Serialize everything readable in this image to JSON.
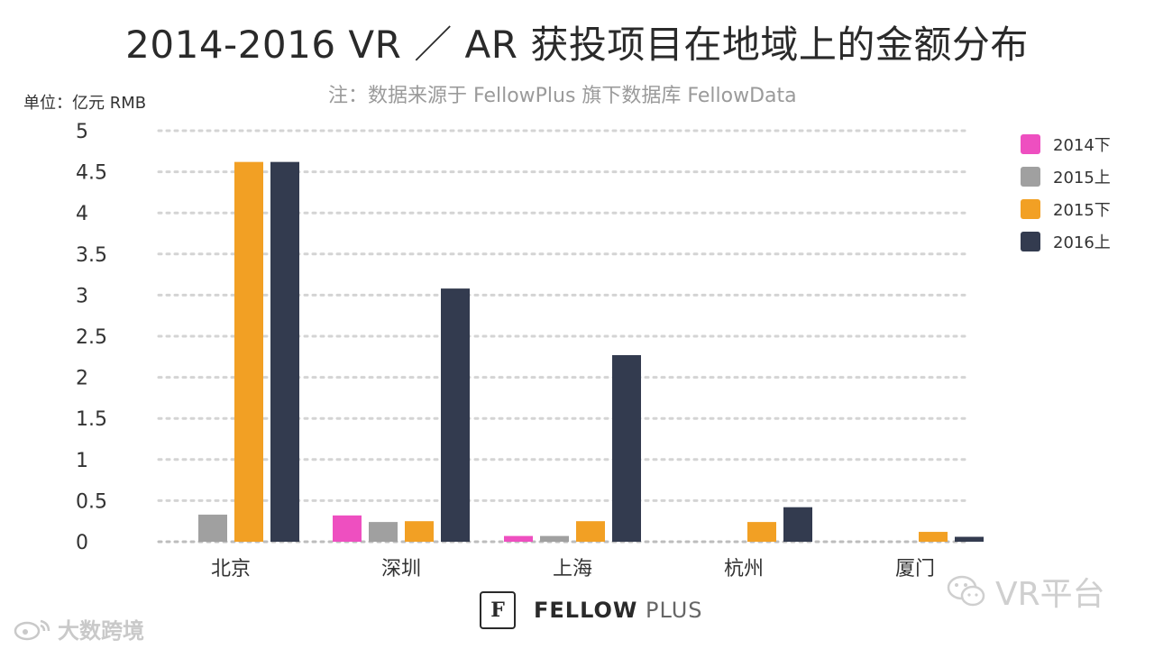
{
  "chart_data": {
    "type": "bar",
    "title": "2014-2016 VR ／ AR 获投项目在地域上的金额分布",
    "subtitle": "注：数据来源于 FellowPlus 旗下数据库 FellowData",
    "ylabel": "单位：亿元 RMB",
    "xlabel": "",
    "ylim": [
      0,
      5
    ],
    "yticks": [
      "0",
      "0.5",
      "1",
      "1.5",
      "2",
      "2.5",
      "3",
      "3.5",
      "4",
      "4.5",
      "5"
    ],
    "grid": true,
    "legend_position": "right",
    "categories": [
      "北京",
      "深圳",
      "上海",
      "杭州",
      "厦门"
    ],
    "series": [
      {
        "name": "2014下",
        "color": "#ee4fc0",
        "values": [
          null,
          0.32,
          0.07,
          null,
          null
        ]
      },
      {
        "name": "2015上",
        "color": "#a0a0a0",
        "values": [
          0.33,
          0.24,
          0.07,
          null,
          null
        ]
      },
      {
        "name": "2015下",
        "color": "#f2a024",
        "values": [
          4.62,
          0.25,
          0.25,
          0.24,
          0.12
        ]
      },
      {
        "name": "2016上",
        "color": "#333b4f",
        "values": [
          4.62,
          3.08,
          2.27,
          0.42,
          0.06
        ]
      }
    ]
  },
  "footer": {
    "logo_glyph": "F",
    "brand_name": "FELLOW",
    "brand_suffix": "PLUS"
  },
  "watermarks": {
    "right": "VR平台",
    "left": "大数跨境"
  }
}
